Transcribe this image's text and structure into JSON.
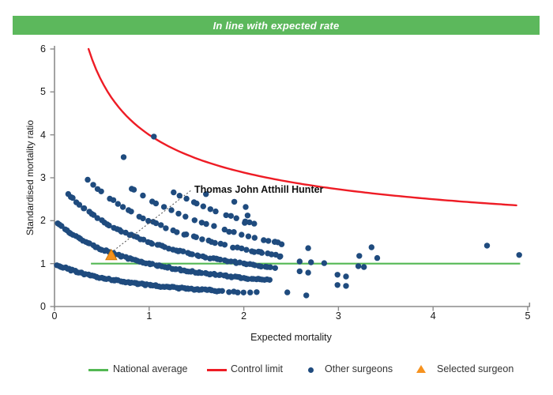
{
  "banner": {
    "text": "In line with expected rate",
    "bg_color": "#5CB85C"
  },
  "chart_data": {
    "type": "scatter",
    "title": "In line with expected rate",
    "xlabel": "Expected mortality",
    "ylabel": "Standardised mortality ratio",
    "xlim": [
      0,
      5
    ],
    "ylim": [
      0,
      6
    ],
    "x_ticks": [
      0,
      1,
      2,
      3,
      4,
      5
    ],
    "y_ticks": [
      0,
      1,
      2,
      3,
      4,
      5,
      6
    ],
    "grid": false,
    "colors": {
      "other_surgeons": "#1F4B7E",
      "control_limit": "#EE1C25",
      "national_average": "#53B853",
      "selected_fill": "#F6921E",
      "selected_stroke": "#D07800",
      "axis": "#8C8C8C",
      "leader_line": "#4D4D4D"
    },
    "national_average": {
      "y": 1.0,
      "x_start": 0.385,
      "x_end": 4.92
    },
    "control_limit": {
      "formula": "smr = 1 + 3/sqrt(expected)",
      "x_start": 0.36,
      "x_end": 4.88
    },
    "surgeon_bands": {
      "formula": "smr = deaths/(1 + expected)",
      "bands": [
        {
          "deaths": 1,
          "segments": [
            [
              0.03,
              1.75,
              85
            ],
            [
              1.78,
              2.2,
              7
            ]
          ]
        },
        {
          "deaths": 2,
          "segments": [
            [
              0.03,
              2.3,
              92
            ]
          ]
        },
        {
          "deaths": 3,
          "segments": [
            [
              0.13,
              2.35,
              68
            ]
          ]
        },
        {
          "deaths": 4,
          "segments": [
            [
              0.35,
              2.45,
              40
            ]
          ]
        },
        {
          "deaths": 5,
          "segments": [
            [
              0.78,
              2.45,
              22
            ]
          ]
        },
        {
          "deaths": 6,
          "segments": [
            [
              1.23,
              2.15,
              13
            ]
          ]
        }
      ]
    },
    "extra_points": [
      [
        0.73,
        3.48
      ],
      [
        1.05,
        3.96
      ],
      [
        1.6,
        2.62
      ],
      [
        1.9,
        2.44
      ],
      [
        2.01,
        1.95
      ],
      [
        2.02,
        2.32
      ],
      [
        2.04,
        2.12
      ],
      [
        2.11,
        1.93
      ],
      [
        2.11,
        1.27
      ],
      [
        2.19,
        1.25
      ],
      [
        2.26,
        1.53
      ],
      [
        2.33,
        1.51
      ],
      [
        2.38,
        1.16
      ],
      [
        2.4,
        1.45
      ],
      [
        2.46,
        0.33
      ],
      [
        2.59,
        0.82
      ],
      [
        2.59,
        1.05
      ],
      [
        2.66,
        0.26
      ],
      [
        2.68,
        0.79
      ],
      [
        2.68,
        1.36
      ],
      [
        2.71,
        1.03
      ],
      [
        2.85,
        1.01
      ],
      [
        2.99,
        0.74
      ],
      [
        3.08,
        0.7
      ],
      [
        2.99,
        0.5
      ],
      [
        3.08,
        0.48
      ],
      [
        3.21,
        0.94
      ],
      [
        3.27,
        0.92
      ],
      [
        3.22,
        1.18
      ],
      [
        3.35,
        1.38
      ],
      [
        3.41,
        1.13
      ],
      [
        4.57,
        1.42
      ],
      [
        4.91,
        1.2
      ]
    ],
    "selected_surgeon": {
      "name": "Thomas John Atthill Hunter",
      "x": 0.6,
      "y": 1.21
    }
  },
  "legend": {
    "items": [
      {
        "label": "National average",
        "marker": "line",
        "color": "#53B853"
      },
      {
        "label": "Control limit",
        "marker": "line",
        "color": "#EE1C25"
      },
      {
        "label": "Other surgeons",
        "marker": "dot",
        "color": "#1F4B7E"
      },
      {
        "label": "Selected surgeon",
        "marker": "triangle",
        "color": "#F6921E"
      }
    ]
  }
}
